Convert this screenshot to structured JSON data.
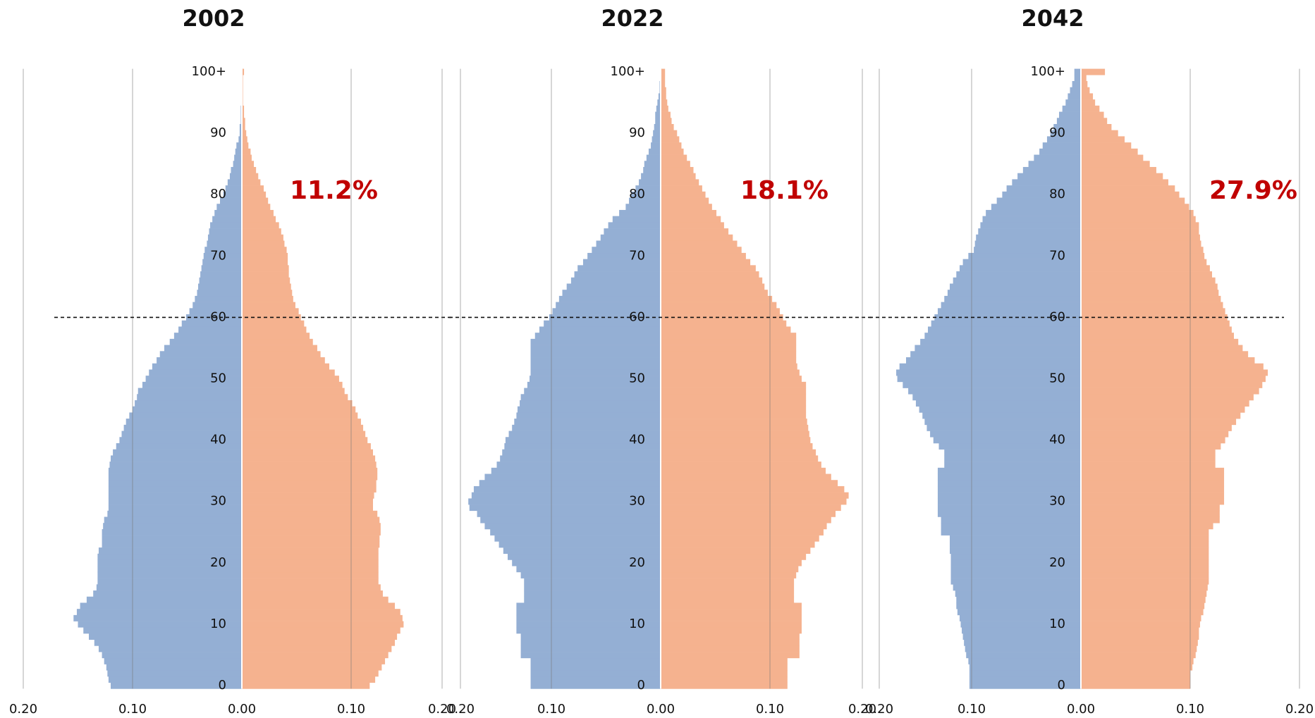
{
  "chart_data": [
    {
      "type": "bar",
      "orientation": "horizontal",
      "title": "2002",
      "annotation": "11.2%",
      "hline": 60,
      "xlim": [
        -0.2,
        0.2
      ],
      "ylim": [
        -0.5,
        100.5
      ],
      "xticks": [
        {
          "value": -0.2,
          "label": "0.20"
        },
        {
          "value": -0.1,
          "label": "0.10"
        },
        {
          "value": 0,
          "label": "0.00"
        },
        {
          "value": 0.1,
          "label": "0.10"
        },
        {
          "value": 0.2,
          "label": "0.20"
        }
      ],
      "yticks": [
        0,
        10,
        20,
        30,
        40,
        50,
        60,
        70,
        80,
        90,
        {
          "value": 100,
          "label": "100+"
        }
      ],
      "grid": true,
      "series": [
        {
          "color": "#94afd4",
          "values": [
            -0.12,
            -0.122,
            -0.123,
            -0.124,
            -0.126,
            -0.128,
            -0.131,
            -0.135,
            -0.14,
            -0.145,
            -0.15,
            -0.154,
            -0.151,
            -0.148,
            -0.142,
            -0.136,
            -0.133,
            -0.132,
            -0.132,
            -0.132,
            -0.132,
            -0.132,
            -0.131,
            -0.128,
            -0.128,
            -0.128,
            -0.127,
            -0.126,
            -0.123,
            -0.122,
            -0.122,
            -0.122,
            -0.122,
            -0.122,
            -0.122,
            -0.122,
            -0.121,
            -0.12,
            -0.118,
            -0.115,
            -0.112,
            -0.11,
            -0.108,
            -0.106,
            -0.103,
            -0.1,
            -0.098,
            -0.096,
            -0.095,
            -0.091,
            -0.088,
            -0.085,
            -0.082,
            -0.078,
            -0.075,
            -0.071,
            -0.066,
            -0.062,
            -0.058,
            -0.055,
            -0.051,
            -0.048,
            -0.045,
            -0.043,
            -0.041,
            -0.04,
            -0.039,
            -0.038,
            -0.037,
            -0.036,
            -0.035,
            -0.034,
            -0.032,
            -0.031,
            -0.03,
            -0.029,
            -0.027,
            -0.025,
            -0.023,
            -0.02,
            -0.017,
            -0.015,
            -0.013,
            -0.011,
            -0.01,
            -0.008,
            -0.007,
            -0.006,
            -0.005,
            -0.003,
            -0.002,
            -0.002,
            -0.001,
            -0.001,
            -0.001,
            0,
            0,
            0,
            0,
            0,
            0
          ]
        },
        {
          "color": "#f5b28f",
          "values": [
            0.117,
            0.122,
            0.125,
            0.128,
            0.131,
            0.134,
            0.137,
            0.14,
            0.142,
            0.145,
            0.148,
            0.147,
            0.145,
            0.14,
            0.134,
            0.129,
            0.127,
            0.125,
            0.125,
            0.125,
            0.125,
            0.125,
            0.125,
            0.126,
            0.126,
            0.127,
            0.127,
            0.126,
            0.124,
            0.12,
            0.12,
            0.121,
            0.123,
            0.123,
            0.124,
            0.124,
            0.123,
            0.122,
            0.12,
            0.118,
            0.115,
            0.113,
            0.111,
            0.109,
            0.106,
            0.104,
            0.101,
            0.097,
            0.094,
            0.092,
            0.089,
            0.085,
            0.08,
            0.076,
            0.072,
            0.069,
            0.065,
            0.062,
            0.059,
            0.057,
            0.054,
            0.052,
            0.049,
            0.047,
            0.046,
            0.045,
            0.044,
            0.043,
            0.043,
            0.042,
            0.042,
            0.041,
            0.039,
            0.038,
            0.036,
            0.034,
            0.031,
            0.029,
            0.026,
            0.024,
            0.022,
            0.02,
            0.017,
            0.015,
            0.013,
            0.011,
            0.009,
            0.008,
            0.006,
            0.005,
            0.004,
            0.003,
            0.003,
            0.002,
            0.002,
            0.001,
            0.001,
            0.001,
            0.001,
            0.001,
            0.002
          ]
        }
      ]
    },
    {
      "type": "bar",
      "orientation": "horizontal",
      "title": "2022",
      "annotation": "18.1%",
      "hline": 60,
      "xlim": [
        -0.2,
        0.2
      ],
      "ylim": [
        -0.5,
        100.5
      ],
      "xticks": [
        {
          "value": -0.2,
          "label": "0.20"
        },
        {
          "value": -0.1,
          "label": "0.10"
        },
        {
          "value": 0,
          "label": "0.00"
        },
        {
          "value": 0.1,
          "label": "0.10"
        },
        {
          "value": 0.2,
          "label": "0.20"
        }
      ],
      "yticks": [
        0,
        10,
        20,
        30,
        40,
        50,
        60,
        70,
        80,
        90,
        {
          "value": 100,
          "label": "100+"
        }
      ],
      "grid": true,
      "series": [
        {
          "color": "#94afd4",
          "values": [
            -0.119,
            -0.119,
            -0.119,
            -0.119,
            -0.119,
            -0.128,
            -0.128,
            -0.128,
            -0.128,
            -0.132,
            -0.132,
            -0.132,
            -0.132,
            -0.132,
            -0.125,
            -0.125,
            -0.125,
            -0.125,
            -0.128,
            -0.132,
            -0.136,
            -0.14,
            -0.144,
            -0.148,
            -0.152,
            -0.156,
            -0.161,
            -0.165,
            -0.168,
            -0.175,
            -0.176,
            -0.173,
            -0.171,
            -0.166,
            -0.161,
            -0.155,
            -0.15,
            -0.147,
            -0.145,
            -0.143,
            -0.142,
            -0.139,
            -0.136,
            -0.134,
            -0.132,
            -0.131,
            -0.129,
            -0.128,
            -0.125,
            -0.122,
            -0.12,
            -0.119,
            -0.119,
            -0.119,
            -0.119,
            -0.119,
            -0.119,
            -0.115,
            -0.111,
            -0.107,
            -0.102,
            -0.099,
            -0.096,
            -0.093,
            -0.09,
            -0.086,
            -0.082,
            -0.079,
            -0.076,
            -0.071,
            -0.067,
            -0.063,
            -0.059,
            -0.055,
            -0.052,
            -0.048,
            -0.044,
            -0.038,
            -0.032,
            -0.029,
            -0.027,
            -0.023,
            -0.02,
            -0.018,
            -0.016,
            -0.015,
            -0.013,
            -0.011,
            -0.009,
            -0.008,
            -0.007,
            -0.006,
            -0.005,
            -0.005,
            -0.004,
            -0.003,
            -0.002,
            -0.001,
            -0.001,
            0,
            0
          ]
        },
        {
          "color": "#f5b28f",
          "values": [
            0.116,
            0.116,
            0.116,
            0.116,
            0.116,
            0.127,
            0.127,
            0.127,
            0.127,
            0.129,
            0.129,
            0.129,
            0.129,
            0.129,
            0.122,
            0.122,
            0.122,
            0.122,
            0.124,
            0.126,
            0.129,
            0.133,
            0.137,
            0.141,
            0.145,
            0.149,
            0.152,
            0.156,
            0.16,
            0.165,
            0.17,
            0.172,
            0.168,
            0.162,
            0.156,
            0.151,
            0.147,
            0.144,
            0.142,
            0.139,
            0.137,
            0.136,
            0.135,
            0.134,
            0.133,
            0.133,
            0.133,
            0.133,
            0.133,
            0.133,
            0.129,
            0.127,
            0.125,
            0.124,
            0.124,
            0.124,
            0.124,
            0.124,
            0.119,
            0.115,
            0.112,
            0.109,
            0.106,
            0.102,
            0.098,
            0.095,
            0.093,
            0.09,
            0.087,
            0.082,
            0.078,
            0.074,
            0.07,
            0.066,
            0.062,
            0.058,
            0.055,
            0.051,
            0.047,
            0.044,
            0.041,
            0.038,
            0.035,
            0.032,
            0.03,
            0.027,
            0.024,
            0.021,
            0.019,
            0.017,
            0.015,
            0.012,
            0.01,
            0.009,
            0.007,
            0.006,
            0.005,
            0.005,
            0.004,
            0.004,
            0.004
          ]
        }
      ]
    },
    {
      "type": "bar",
      "orientation": "horizontal",
      "title": "2042",
      "annotation": "27.9%",
      "hline": 60,
      "xlim": [
        -0.2,
        0.2
      ],
      "ylim": [
        -0.5,
        100.5
      ],
      "xticks": [
        {
          "value": -0.2,
          "label": "0.20"
        },
        {
          "value": -0.1,
          "label": "0.10"
        },
        {
          "value": 0,
          "label": "0.00"
        },
        {
          "value": 0.1,
          "label": "0.10"
        },
        {
          "value": 0.2,
          "label": "0.20"
        }
      ],
      "yticks": [
        0,
        10,
        20,
        30,
        40,
        50,
        60,
        70,
        80,
        90,
        {
          "value": 100,
          "label": "100+"
        }
      ],
      "grid": true,
      "series": [
        {
          "color": "#94afd4",
          "values": [
            -0.102,
            -0.102,
            -0.102,
            -0.102,
            -0.103,
            -0.105,
            -0.106,
            -0.107,
            -0.108,
            -0.109,
            -0.11,
            -0.111,
            -0.113,
            -0.114,
            -0.114,
            -0.115,
            -0.117,
            -0.119,
            -0.119,
            -0.119,
            -0.119,
            -0.119,
            -0.12,
            -0.12,
            -0.12,
            -0.128,
            -0.128,
            -0.128,
            -0.131,
            -0.131,
            -0.131,
            -0.131,
            -0.131,
            -0.131,
            -0.131,
            -0.131,
            -0.125,
            -0.125,
            -0.125,
            -0.13,
            -0.135,
            -0.138,
            -0.141,
            -0.143,
            -0.145,
            -0.148,
            -0.151,
            -0.154,
            -0.158,
            -0.163,
            -0.168,
            -0.169,
            -0.166,
            -0.16,
            -0.156,
            -0.152,
            -0.147,
            -0.143,
            -0.14,
            -0.137,
            -0.134,
            -0.131,
            -0.128,
            -0.125,
            -0.122,
            -0.12,
            -0.117,
            -0.114,
            -0.111,
            -0.108,
            -0.103,
            -0.098,
            -0.097,
            -0.096,
            -0.094,
            -0.092,
            -0.09,
            -0.087,
            -0.082,
            -0.077,
            -0.072,
            -0.068,
            -0.063,
            -0.058,
            -0.053,
            -0.048,
            -0.043,
            -0.038,
            -0.035,
            -0.031,
            -0.028,
            -0.025,
            -0.022,
            -0.02,
            -0.017,
            -0.014,
            -0.012,
            -0.01,
            -0.008,
            -0.006,
            -0.006
          ]
        },
        {
          "color": "#f5b28f",
          "values": [
            0.1,
            0.1,
            0.1,
            0.102,
            0.103,
            0.105,
            0.106,
            0.107,
            0.108,
            0.108,
            0.109,
            0.11,
            0.112,
            0.113,
            0.114,
            0.115,
            0.116,
            0.117,
            0.117,
            0.117,
            0.117,
            0.117,
            0.117,
            0.117,
            0.117,
            0.117,
            0.121,
            0.127,
            0.127,
            0.127,
            0.131,
            0.131,
            0.131,
            0.131,
            0.131,
            0.131,
            0.123,
            0.123,
            0.123,
            0.128,
            0.132,
            0.135,
            0.138,
            0.142,
            0.146,
            0.15,
            0.154,
            0.158,
            0.163,
            0.166,
            0.169,
            0.171,
            0.167,
            0.159,
            0.153,
            0.148,
            0.144,
            0.14,
            0.138,
            0.136,
            0.134,
            0.132,
            0.13,
            0.128,
            0.126,
            0.125,
            0.123,
            0.12,
            0.118,
            0.115,
            0.113,
            0.112,
            0.11,
            0.109,
            0.108,
            0.108,
            0.105,
            0.103,
            0.099,
            0.095,
            0.09,
            0.086,
            0.08,
            0.075,
            0.069,
            0.063,
            0.057,
            0.052,
            0.046,
            0.04,
            0.034,
            0.028,
            0.024,
            0.021,
            0.017,
            0.013,
            0.011,
            0.008,
            0.006,
            0.005,
            0.022
          ]
        }
      ]
    }
  ]
}
